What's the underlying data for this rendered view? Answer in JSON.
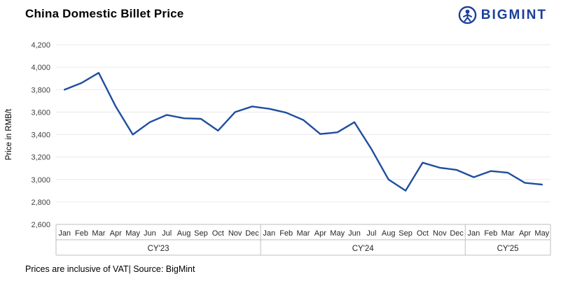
{
  "header": {
    "title": "China Domestic Billet Price",
    "logo_text": "BIGMINT"
  },
  "footnote": "Prices are inclusive of VAT| Source: BigMint",
  "colors": {
    "accent": "#1F4E9F",
    "logo_blue": "#1b3e9b",
    "grid": "#e9e9e9",
    "axis": "#bfbfbf",
    "tick_text": "#3f3f3f"
  },
  "chart_data": {
    "type": "line",
    "title": "China Domestic Billet Price",
    "ylabel": "Price in RMB/t",
    "ylim": [
      2600,
      4200
    ],
    "ytick_step": 200,
    "ytick_labels": [
      "2,600",
      "2,800",
      "3,000",
      "3,200",
      "3,400",
      "3,600",
      "3,800",
      "4,000",
      "4,200"
    ],
    "months": [
      "Jan",
      "Feb",
      "Mar",
      "Apr",
      "May",
      "Jun",
      "Jul",
      "Aug",
      "Sep",
      "Oct",
      "Nov",
      "Dec",
      "Jan",
      "Feb",
      "Mar",
      "Apr",
      "May",
      "Jun",
      "Jul",
      "Aug",
      "Sep",
      "Oct",
      "Nov",
      "Dec",
      "Jan",
      "Feb",
      "Mar",
      "Apr",
      "May"
    ],
    "year_groups": [
      {
        "label": "CY'23",
        "count": 12
      },
      {
        "label": "CY'24",
        "count": 12
      },
      {
        "label": "CY'25",
        "count": 5
      }
    ],
    "series": [
      {
        "name": "China Domestic Billet Price",
        "values": [
          3800,
          3860,
          3950,
          3650,
          3400,
          3510,
          3575,
          3545,
          3540,
          3435,
          3600,
          3650,
          3630,
          3595,
          3530,
          3405,
          3420,
          3510,
          3270,
          3000,
          2900,
          3150,
          3105,
          3085,
          3020,
          3075,
          3060,
          2970,
          2955
        ]
      }
    ],
    "line_color": "#1F4E9F",
    "grid": true,
    "legend": "none"
  }
}
